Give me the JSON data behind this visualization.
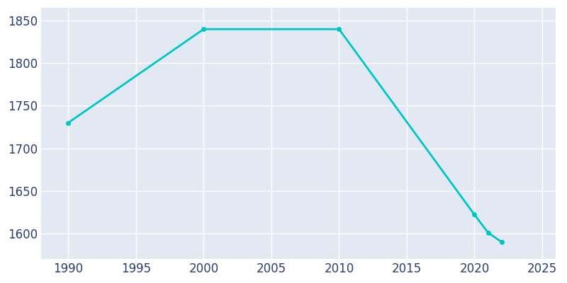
{
  "years": [
    1990,
    2000,
    2010,
    2020,
    2021,
    2022
  ],
  "population": [
    1730,
    1840,
    1840,
    1622,
    1601,
    1590
  ],
  "line_color": "#00C5C5",
  "axes_facecolor": "#E3E9F3",
  "figure_facecolor": "#FFFFFF",
  "grid_color": "#FFFFFF",
  "tick_label_color": "#2C3E6B",
  "xlim": [
    1988,
    2026
  ],
  "ylim": [
    1570,
    1865
  ],
  "xticks": [
    1990,
    1995,
    2000,
    2005,
    2010,
    2015,
    2020,
    2025
  ],
  "yticks": [
    1600,
    1650,
    1700,
    1750,
    1800,
    1850
  ],
  "line_width": 2.0,
  "marker": "o",
  "marker_size": 4,
  "tick_fontsize": 12
}
